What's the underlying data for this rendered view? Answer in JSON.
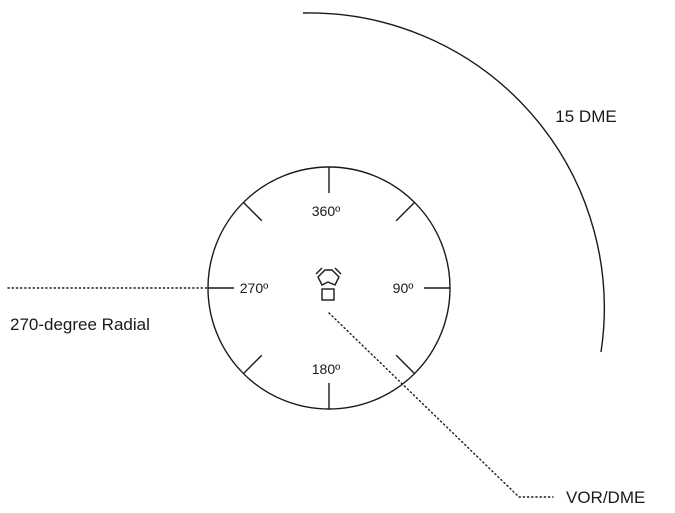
{
  "diagram": {
    "arc_label": "15 DME",
    "radial_label": "270-degree Radial",
    "station_label": "VOR/DME",
    "compass": {
      "north": "360º",
      "east": "90º",
      "south": "180º",
      "west": "270º"
    }
  }
}
